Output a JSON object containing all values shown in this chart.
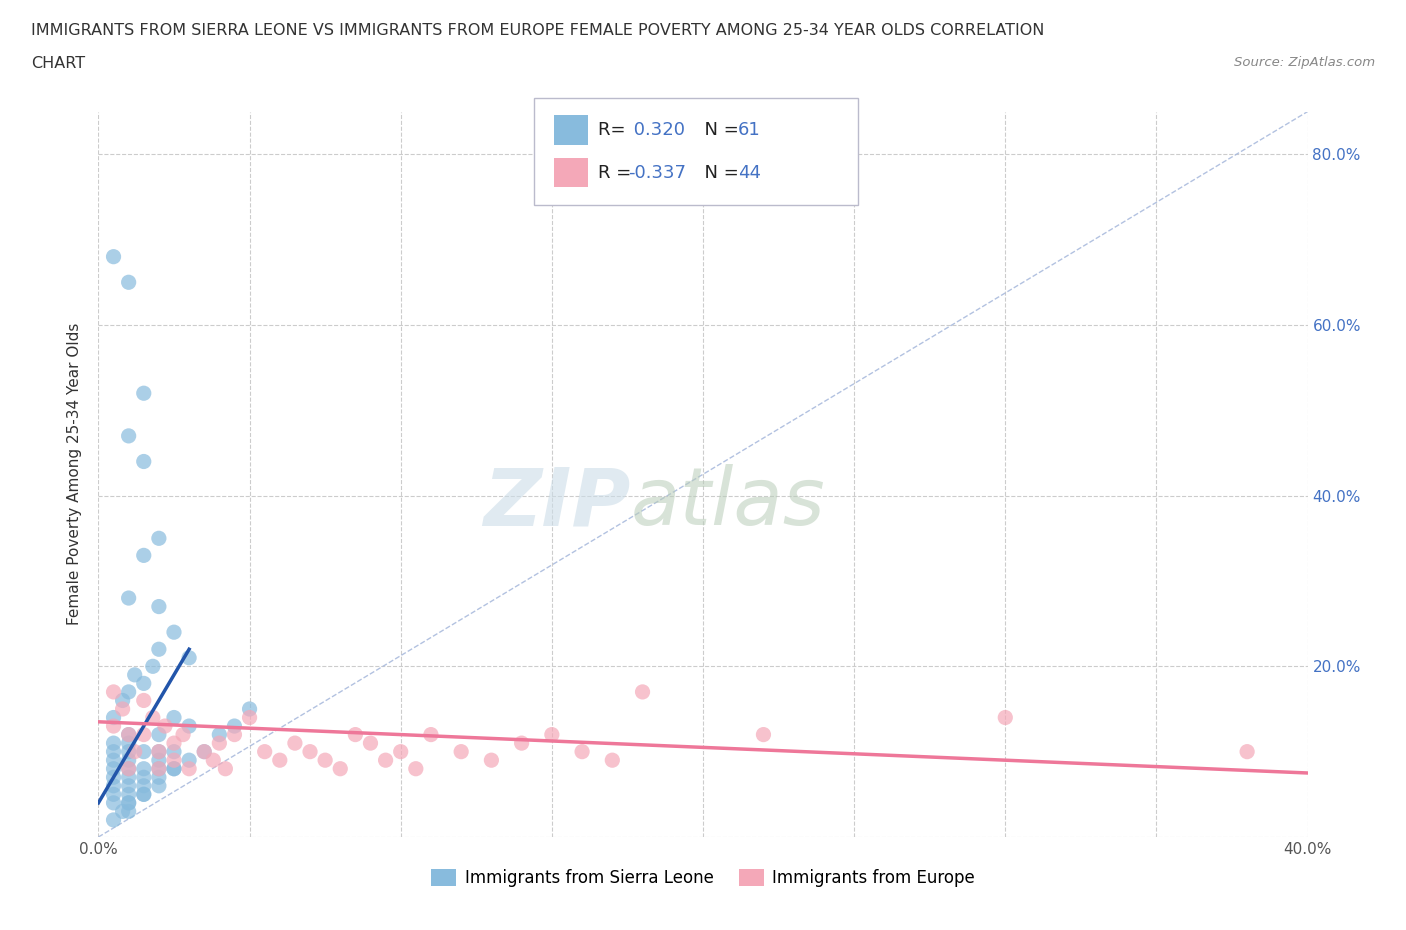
{
  "title_line1": "IMMIGRANTS FROM SIERRA LEONE VS IMMIGRANTS FROM EUROPE FEMALE POVERTY AMONG 25-34 YEAR OLDS CORRELATION",
  "title_line2": "CHART",
  "source": "Source: ZipAtlas.com",
  "ylabel": "Female Poverty Among 25-34 Year Olds",
  "xlim": [
    0.0,
    0.4
  ],
  "ylim": [
    0.0,
    0.85
  ],
  "xticks": [
    0.0,
    0.05,
    0.1,
    0.15,
    0.2,
    0.25,
    0.3,
    0.35,
    0.4
  ],
  "yticks": [
    0.0,
    0.2,
    0.4,
    0.6,
    0.8
  ],
  "sierra_leone_color": "#88bbdd",
  "europe_color": "#f4a8b8",
  "sierra_leone_R": 0.32,
  "sierra_leone_N": 61,
  "europe_R": -0.337,
  "europe_N": 44,
  "sierra_leone_line_color": "#2255aa",
  "europe_line_color": "#ee7799",
  "diagonal_color": "#aabbdd",
  "legend_label_1": "Immigrants from Sierra Leone",
  "legend_label_2": "Immigrants from Europe",
  "sierra_leone_x": [
    0.005,
    0.005,
    0.005,
    0.005,
    0.005,
    0.005,
    0.005,
    0.005,
    0.01,
    0.01,
    0.01,
    0.01,
    0.01,
    0.01,
    0.01,
    0.01,
    0.01,
    0.01,
    0.015,
    0.015,
    0.015,
    0.015,
    0.015,
    0.02,
    0.02,
    0.02,
    0.02,
    0.02,
    0.025,
    0.025,
    0.025,
    0.03,
    0.03,
    0.035,
    0.04,
    0.045,
    0.05,
    0.005,
    0.008,
    0.01,
    0.012,
    0.015,
    0.018,
    0.02,
    0.005,
    0.008,
    0.01,
    0.015,
    0.02,
    0.025,
    0.01,
    0.015,
    0.02,
    0.025,
    0.03,
    0.01,
    0.015,
    0.02,
    0.01,
    0.005,
    0.015
  ],
  "sierra_leone_y": [
    0.05,
    0.06,
    0.07,
    0.08,
    0.09,
    0.1,
    0.11,
    0.04,
    0.05,
    0.06,
    0.07,
    0.08,
    0.09,
    0.1,
    0.11,
    0.12,
    0.04,
    0.03,
    0.06,
    0.07,
    0.08,
    0.1,
    0.05,
    0.07,
    0.08,
    0.09,
    0.1,
    0.12,
    0.08,
    0.1,
    0.14,
    0.09,
    0.13,
    0.1,
    0.12,
    0.13,
    0.15,
    0.14,
    0.16,
    0.17,
    0.19,
    0.18,
    0.2,
    0.22,
    0.02,
    0.03,
    0.04,
    0.05,
    0.06,
    0.08,
    0.47,
    0.33,
    0.27,
    0.24,
    0.21,
    0.65,
    0.44,
    0.35,
    0.28,
    0.68,
    0.52
  ],
  "europe_x": [
    0.005,
    0.005,
    0.008,
    0.01,
    0.01,
    0.012,
    0.015,
    0.015,
    0.018,
    0.02,
    0.02,
    0.022,
    0.025,
    0.025,
    0.028,
    0.03,
    0.035,
    0.038,
    0.04,
    0.042,
    0.045,
    0.05,
    0.055,
    0.06,
    0.065,
    0.07,
    0.075,
    0.08,
    0.085,
    0.09,
    0.095,
    0.1,
    0.105,
    0.11,
    0.12,
    0.13,
    0.14,
    0.15,
    0.16,
    0.17,
    0.18,
    0.22,
    0.3,
    0.38
  ],
  "europe_y": [
    0.17,
    0.13,
    0.15,
    0.08,
    0.12,
    0.1,
    0.16,
    0.12,
    0.14,
    0.1,
    0.08,
    0.13,
    0.11,
    0.09,
    0.12,
    0.08,
    0.1,
    0.09,
    0.11,
    0.08,
    0.12,
    0.14,
    0.1,
    0.09,
    0.11,
    0.1,
    0.09,
    0.08,
    0.12,
    0.11,
    0.09,
    0.1,
    0.08,
    0.12,
    0.1,
    0.09,
    0.11,
    0.12,
    0.1,
    0.09,
    0.17,
    0.12,
    0.14,
    0.1
  ],
  "sl_line_x0": 0.0,
  "sl_line_x1": 0.03,
  "sl_line_y0": 0.04,
  "sl_line_y1": 0.22,
  "eu_line_x0": 0.0,
  "eu_line_x1": 0.4,
  "eu_line_y0": 0.135,
  "eu_line_y1": 0.075
}
